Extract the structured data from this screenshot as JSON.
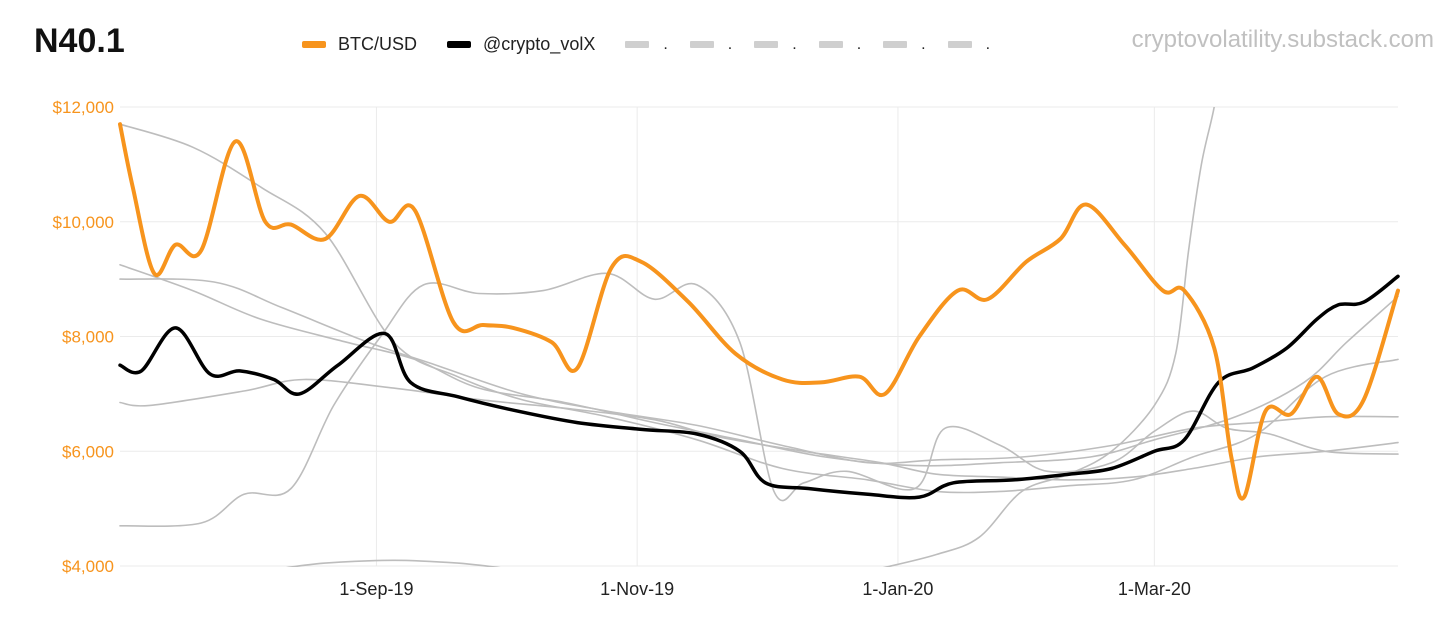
{
  "header": {
    "title": "N40.1",
    "watermark": "cryptovolatility.substack.com"
  },
  "legend": {
    "items": [
      {
        "label": "BTC/USD",
        "color": "#f7941d"
      },
      {
        "label": "@crypto_volX",
        "color": "#000000"
      }
    ],
    "placeholders": [
      ".",
      ".",
      ".",
      ".",
      ".",
      "."
    ]
  },
  "chart_data": {
    "type": "line",
    "title": "",
    "xlabel": "",
    "ylabel": "",
    "ylim": [
      4000,
      12000
    ],
    "yticks": [
      {
        "value": 4000,
        "label": "$4,000"
      },
      {
        "value": 6000,
        "label": "$6,000"
      },
      {
        "value": 8000,
        "label": "$8,000"
      },
      {
        "value": 10000,
        "label": "$10,000"
      },
      {
        "value": 12000,
        "label": "$12,000"
      }
    ],
    "xlim": [
      "2019-07-03",
      "2020-04-27"
    ],
    "xticks": [
      {
        "date": "2019-09-01",
        "label": "1-Sep-19"
      },
      {
        "date": "2019-11-01",
        "label": "1-Nov-19"
      },
      {
        "date": "2020-01-01",
        "label": "1-Jan-20"
      },
      {
        "date": "2020-03-01",
        "label": "1-Mar-20"
      }
    ],
    "grid": true,
    "legend_position": "top",
    "series": [
      {
        "name": "BTC/USD",
        "color": "#f7941d",
        "width": 4,
        "z": 3,
        "points": [
          [
            "2019-07-03",
            11700
          ],
          [
            "2019-07-06",
            10600
          ],
          [
            "2019-07-11",
            9100
          ],
          [
            "2019-07-16",
            9600
          ],
          [
            "2019-07-22",
            9500
          ],
          [
            "2019-07-30",
            11400
          ],
          [
            "2019-08-06",
            10000
          ],
          [
            "2019-08-12",
            9950
          ],
          [
            "2019-08-20",
            9700
          ],
          [
            "2019-08-28",
            10450
          ],
          [
            "2019-09-04",
            10000
          ],
          [
            "2019-09-10",
            10200
          ],
          [
            "2019-09-19",
            8250
          ],
          [
            "2019-09-26",
            8200
          ],
          [
            "2019-10-03",
            8150
          ],
          [
            "2019-10-12",
            7900
          ],
          [
            "2019-10-18",
            7450
          ],
          [
            "2019-10-26",
            9200
          ],
          [
            "2019-11-02",
            9300
          ],
          [
            "2019-11-13",
            8600
          ],
          [
            "2019-11-24",
            7700
          ],
          [
            "2019-12-05",
            7250
          ],
          [
            "2019-12-14",
            7200
          ],
          [
            "2019-12-23",
            7300
          ],
          [
            "2019-12-29",
            7000
          ],
          [
            "2020-01-06",
            8000
          ],
          [
            "2020-01-15",
            8800
          ],
          [
            "2020-01-22",
            8650
          ],
          [
            "2020-01-31",
            9300
          ],
          [
            "2020-02-08",
            9700
          ],
          [
            "2020-02-14",
            10300
          ],
          [
            "2020-02-23",
            9600
          ],
          [
            "2020-03-03",
            8800
          ],
          [
            "2020-03-08",
            8800
          ],
          [
            "2020-03-15",
            7800
          ],
          [
            "2020-03-19",
            5900
          ],
          [
            "2020-03-22",
            5200
          ],
          [
            "2020-03-27",
            6700
          ],
          [
            "2020-04-02",
            6650
          ],
          [
            "2020-04-08",
            7300
          ],
          [
            "2020-04-13",
            6650
          ],
          [
            "2020-04-19",
            6900
          ],
          [
            "2020-04-27",
            8800
          ]
        ]
      },
      {
        "name": "@crypto_volX",
        "color": "#000000",
        "width": 3.5,
        "z": 2,
        "points": [
          [
            "2019-07-03",
            7500
          ],
          [
            "2019-07-08",
            7400
          ],
          [
            "2019-07-16",
            8150
          ],
          [
            "2019-07-24",
            7350
          ],
          [
            "2019-07-31",
            7400
          ],
          [
            "2019-08-08",
            7250
          ],
          [
            "2019-08-14",
            7000
          ],
          [
            "2019-08-23",
            7500
          ],
          [
            "2019-09-03",
            8050
          ],
          [
            "2019-09-09",
            7200
          ],
          [
            "2019-09-20",
            6950
          ],
          [
            "2019-10-04",
            6700
          ],
          [
            "2019-10-18",
            6500
          ],
          [
            "2019-11-02",
            6380
          ],
          [
            "2019-11-15",
            6300
          ],
          [
            "2019-11-25",
            6000
          ],
          [
            "2019-12-01",
            5450
          ],
          [
            "2019-12-11",
            5350
          ],
          [
            "2019-12-25",
            5250
          ],
          [
            "2020-01-06",
            5200
          ],
          [
            "2020-01-14",
            5450
          ],
          [
            "2020-01-28",
            5500
          ],
          [
            "2020-02-10",
            5600
          ],
          [
            "2020-02-20",
            5700
          ],
          [
            "2020-03-01",
            6000
          ],
          [
            "2020-03-08",
            6200
          ],
          [
            "2020-03-16",
            7200
          ],
          [
            "2020-03-24",
            7450
          ],
          [
            "2020-04-01",
            7800
          ],
          [
            "2020-04-08",
            8300
          ],
          [
            "2020-04-13",
            8550
          ],
          [
            "2020-04-19",
            8600
          ],
          [
            "2020-04-27",
            9050
          ]
        ]
      },
      {
        "name": "",
        "color": "#bdbdbd",
        "width": 1.6,
        "z": 1,
        "points": [
          [
            "2019-07-03",
            11700
          ],
          [
            "2019-07-20",
            11300
          ],
          [
            "2019-08-05",
            10600
          ],
          [
            "2019-08-20",
            9800
          ],
          [
            "2019-09-05",
            7900
          ],
          [
            "2019-09-20",
            7300
          ],
          [
            "2019-10-05",
            6900
          ],
          [
            "2019-10-25",
            6600
          ],
          [
            "2019-11-15",
            6200
          ],
          [
            "2019-12-05",
            5700
          ],
          [
            "2019-12-25",
            5500
          ],
          [
            "2020-01-10",
            5300
          ],
          [
            "2020-01-25",
            5300
          ],
          [
            "2020-02-10",
            5400
          ],
          [
            "2020-02-25",
            5500
          ],
          [
            "2020-03-10",
            5900
          ],
          [
            "2020-03-25",
            6300
          ],
          [
            "2020-04-10",
            7300
          ],
          [
            "2020-04-27",
            7600
          ]
        ]
      },
      {
        "name": "",
        "color": "#bdbdbd",
        "width": 1.6,
        "z": 1,
        "points": [
          [
            "2019-07-03",
            9250
          ],
          [
            "2019-07-20",
            8800
          ],
          [
            "2019-08-05",
            8300
          ],
          [
            "2019-08-25",
            7900
          ],
          [
            "2019-09-10",
            7600
          ],
          [
            "2019-09-25",
            7100
          ],
          [
            "2019-10-15",
            6850
          ],
          [
            "2019-11-05",
            6500
          ],
          [
            "2019-11-25",
            6200
          ],
          [
            "2019-12-15",
            5900
          ],
          [
            "2020-01-05",
            5750
          ],
          [
            "2020-01-25",
            5800
          ],
          [
            "2020-02-15",
            5900
          ],
          [
            "2020-03-01",
            6200
          ],
          [
            "2020-03-20",
            6600
          ],
          [
            "2020-04-05",
            7200
          ],
          [
            "2020-04-15",
            7900
          ],
          [
            "2020-04-27",
            8700
          ]
        ]
      },
      {
        "name": "",
        "color": "#bdbdbd",
        "width": 1.6,
        "z": 1,
        "points": [
          [
            "2019-07-03",
            9000
          ],
          [
            "2019-07-25",
            8950
          ],
          [
            "2019-08-10",
            8500
          ],
          [
            "2019-08-30",
            7900
          ],
          [
            "2019-09-15",
            7500
          ],
          [
            "2019-10-05",
            7000
          ],
          [
            "2019-10-25",
            6700
          ],
          [
            "2019-11-15",
            6450
          ],
          [
            "2019-12-05",
            6100
          ],
          [
            "2019-12-25",
            5800
          ],
          [
            "2020-01-10",
            5850
          ],
          [
            "2020-01-30",
            5900
          ],
          [
            "2020-02-20",
            6100
          ],
          [
            "2020-03-10",
            6400
          ],
          [
            "2020-03-25",
            6500
          ],
          [
            "2020-04-10",
            6600
          ],
          [
            "2020-04-27",
            6600
          ]
        ]
      },
      {
        "name": "",
        "color": "#bdbdbd",
        "width": 1.6,
        "z": 1,
        "points": [
          [
            "2019-07-03",
            6850
          ],
          [
            "2019-07-10",
            6800
          ],
          [
            "2019-08-01",
            7050
          ],
          [
            "2019-08-15",
            7250
          ],
          [
            "2019-09-05",
            7100
          ],
          [
            "2019-09-25",
            6900
          ],
          [
            "2019-10-15",
            6750
          ],
          [
            "2019-11-05",
            6550
          ],
          [
            "2019-11-20",
            6250
          ],
          [
            "2019-12-10",
            6000
          ],
          [
            "2019-12-28",
            5800
          ],
          [
            "2020-01-10",
            5600
          ],
          [
            "2020-01-25",
            5550
          ],
          [
            "2020-02-10",
            5500
          ],
          [
            "2020-02-25",
            5550
          ],
          [
            "2020-03-10",
            5700
          ],
          [
            "2020-03-25",
            5900
          ],
          [
            "2020-04-10",
            6000
          ],
          [
            "2020-04-27",
            6150
          ]
        ]
      },
      {
        "name": "",
        "color": "#bdbdbd",
        "width": 1.6,
        "z": 1,
        "points": [
          [
            "2019-07-03",
            4700
          ],
          [
            "2019-07-22",
            4750
          ],
          [
            "2019-08-01",
            5250
          ],
          [
            "2019-08-12",
            5350
          ],
          [
            "2019-08-22",
            6800
          ],
          [
            "2019-09-02",
            8000
          ],
          [
            "2019-09-12",
            8900
          ],
          [
            "2019-09-25",
            8750
          ],
          [
            "2019-10-10",
            8800
          ],
          [
            "2019-10-25",
            9100
          ],
          [
            "2019-11-05",
            8650
          ],
          [
            "2019-11-15",
            8900
          ],
          [
            "2019-11-25",
            7900
          ],
          [
            "2019-12-03",
            5300
          ],
          [
            "2019-12-10",
            5450
          ],
          [
            "2019-12-20",
            5650
          ],
          [
            "2020-01-05",
            5350
          ],
          [
            "2020-01-12",
            6400
          ],
          [
            "2020-01-25",
            6100
          ],
          [
            "2020-02-05",
            5650
          ],
          [
            "2020-02-20",
            5800
          ],
          [
            "2020-03-01",
            6350
          ],
          [
            "2020-03-10",
            6700
          ],
          [
            "2020-03-18",
            6400
          ],
          [
            "2020-03-28",
            6300
          ],
          [
            "2020-04-10",
            6000
          ],
          [
            "2020-04-27",
            5950
          ]
        ]
      },
      {
        "name": "",
        "color": "#bdbdbd",
        "width": 1.6,
        "z": 1,
        "points": [
          [
            "2019-08-10",
            3960
          ],
          [
            "2019-08-20",
            4050
          ],
          [
            "2019-09-05",
            4100
          ],
          [
            "2019-09-20",
            4050
          ],
          [
            "2019-10-01",
            3960
          ]
        ]
      },
      {
        "name": "",
        "color": "#bdbdbd",
        "width": 1.6,
        "z": 1,
        "points": [
          [
            "2019-12-28",
            3960
          ],
          [
            "2020-01-10",
            4200
          ],
          [
            "2020-01-20",
            4500
          ],
          [
            "2020-01-30",
            5300
          ],
          [
            "2020-02-10",
            5600
          ],
          [
            "2020-02-20",
            6000
          ],
          [
            "2020-03-01",
            6800
          ],
          [
            "2020-03-06",
            7700
          ],
          [
            "2020-03-09",
            9500
          ],
          [
            "2020-03-12",
            11000
          ],
          [
            "2020-03-15",
            12000
          ],
          [
            "2020-03-17",
            13000
          ]
        ]
      }
    ]
  }
}
